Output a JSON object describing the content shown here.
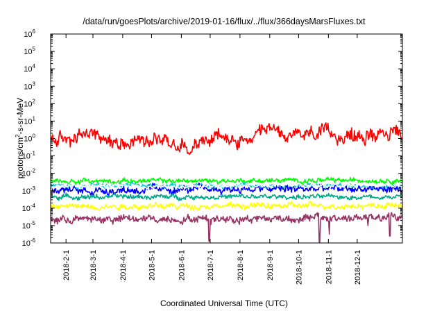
{
  "chart_data": {
    "type": "line",
    "title": "/data/run/goesPlots/archive/2019-01-16/flux/../flux/366daysMarsFluxes.txt",
    "xlabel": "Coordinated Universal Time (UTC)",
    "ylabel_base": "protons/cm",
    "ylabel_sup": "2",
    "ylabel_rest": "-s-sr-MeV",
    "yscale": "log",
    "ylim_exp": [
      -6,
      6
    ],
    "y_ticks": [
      {
        "exp": "-6"
      },
      {
        "exp": "-5"
      },
      {
        "exp": "-4"
      },
      {
        "exp": "-3"
      },
      {
        "exp": "-2"
      },
      {
        "exp": "-1"
      },
      {
        "exp": "0"
      },
      {
        "exp": "1"
      },
      {
        "exp": "2"
      },
      {
        "exp": "3"
      },
      {
        "exp": "4"
      },
      {
        "exp": "5"
      },
      {
        "exp": "6"
      }
    ],
    "x_ticks": [
      "2018-2-1",
      "2018-3-1",
      "2018-4-1",
      "2018-5-1",
      "2018-6-1",
      "2018-7-1",
      "2018-8-1",
      "2018-9-1",
      "2018-10-1",
      "2018-11-1",
      "2018-12-1"
    ],
    "x_tick_days": [
      16,
      44,
      75,
      105,
      136,
      166,
      197,
      228,
      258,
      289,
      319
    ],
    "xlim_days": [
      0,
      366
    ],
    "grid": false,
    "legend": "none",
    "series": [
      {
        "color": "#ff0000",
        "center_log": 0.0,
        "spread": 0.35,
        "shape": [
          [
            0,
            -0.1
          ],
          [
            20,
            -0.05
          ],
          [
            45,
            0.35
          ],
          [
            60,
            -0.2
          ],
          [
            80,
            -0.1
          ],
          [
            110,
            0.05
          ],
          [
            140,
            -0.45
          ],
          [
            165,
            -0.1
          ],
          [
            175,
            0.1
          ],
          [
            200,
            -0.3
          ],
          [
            220,
            0.15
          ],
          [
            232,
            0.55
          ],
          [
            250,
            0.05
          ],
          [
            275,
            0.3
          ],
          [
            300,
            0.2
          ],
          [
            325,
            0.05
          ],
          [
            345,
            0.5
          ],
          [
            366,
            0.1
          ]
        ]
      },
      {
        "color": "#00ff00",
        "center_log": -2.45,
        "spread": 0.12,
        "shape": [
          [
            0,
            0
          ],
          [
            366,
            0.05
          ]
        ]
      },
      {
        "color": "#00cccc",
        "center_log": -2.72,
        "spread": 0.12,
        "shape": [
          [
            0,
            0
          ],
          [
            366,
            0
          ]
        ]
      },
      {
        "color": "#0000ff",
        "center_log": -2.95,
        "spread": 0.2,
        "shape": [
          [
            0,
            -0.05
          ],
          [
            180,
            0.05
          ],
          [
            366,
            0.05
          ]
        ]
      },
      {
        "color": "#ffffff",
        "center_log": -2.75,
        "spread": 0.1,
        "shape": [
          [
            0,
            -0.1
          ],
          [
            60,
            0.1
          ],
          [
            120,
            -0.05
          ],
          [
            240,
            0.1
          ],
          [
            366,
            0.05
          ]
        ]
      },
      {
        "color": "#00aa88",
        "center_log": -3.35,
        "spread": 0.12,
        "shape": [
          [
            0,
            0
          ],
          [
            366,
            0
          ]
        ]
      },
      {
        "color": "#ffff00",
        "center_log": -3.9,
        "spread": 0.15,
        "shape": [
          [
            0,
            0
          ],
          [
            366,
            0.05
          ]
        ]
      },
      {
        "color": "#993366",
        "center_log": -4.6,
        "spread": 0.2,
        "shape": [
          [
            0,
            -0.05
          ],
          [
            366,
            0.05
          ]
        ],
        "dips": [
          [
            165,
            -5.9
          ],
          [
            280,
            -5.95
          ],
          [
            290,
            -5.5
          ],
          [
            330,
            -5.0
          ],
          [
            353,
            -5.6
          ]
        ]
      }
    ]
  }
}
